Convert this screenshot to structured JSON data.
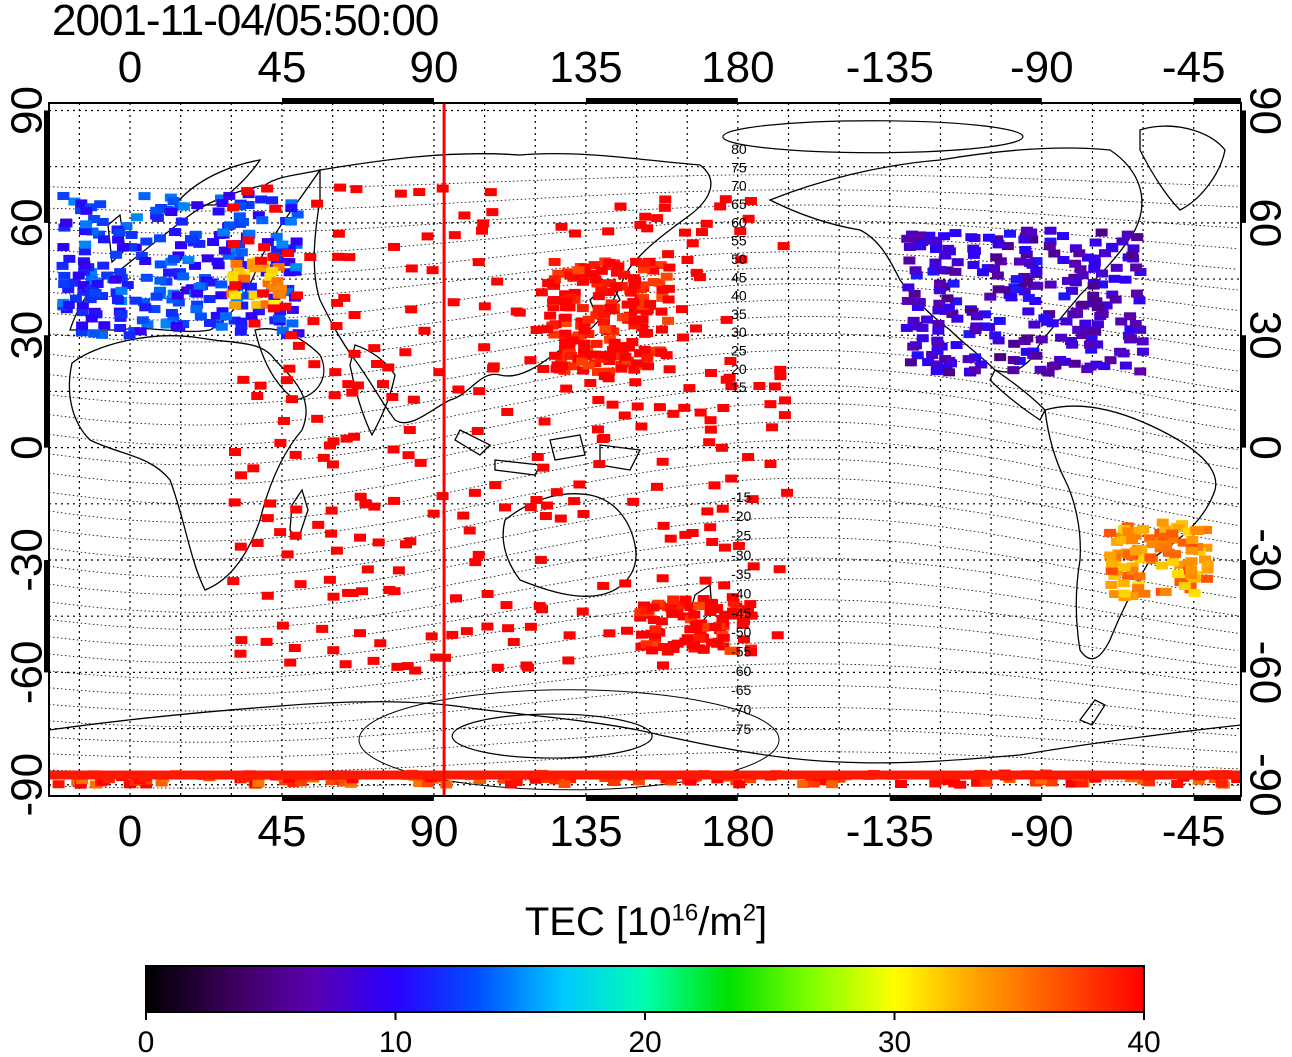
{
  "title": "2001-11-04/05:50:00",
  "map": {
    "lon_ticks_top": [
      "0",
      "45",
      "90",
      "135",
      "180",
      "-135",
      "-90",
      "-45"
    ],
    "lon_ticks_bottom": [
      "0",
      "45",
      "90",
      "135",
      "180",
      "-135",
      "-90",
      "-45"
    ],
    "lat_ticks_left": [
      "90",
      "60",
      "30",
      "0",
      "-30",
      "-60",
      "-90"
    ],
    "lat_ticks_right": [
      "90",
      "60",
      "30",
      "0",
      "-30",
      "-60",
      "-90"
    ],
    "lon_tick_values": [
      0,
      45,
      90,
      135,
      180,
      225,
      270,
      315
    ],
    "lat_tick_values": [
      90,
      60,
      30,
      0,
      -30,
      -60,
      -90
    ],
    "lon_range": [
      -24,
      329
    ],
    "lat_range": [
      -93,
      92
    ],
    "grid": "dotted",
    "terminator_longitude": 93,
    "terminator_color": "#ff0000",
    "contour_labels_north": [
      "80",
      "75",
      "70",
      "65",
      "60",
      "55",
      "50",
      "45",
      "40",
      "35",
      "30",
      "25",
      "20",
      "15"
    ],
    "contour_labels_south": [
      "-15",
      "-20",
      "-25",
      "-30",
      "-35",
      "-40",
      "-45",
      "-50",
      "-55",
      "-60",
      "-65",
      "-70",
      "-75"
    ]
  },
  "colorbar": {
    "label_prefix": "TEC  [10",
    "label_exp": "16",
    "label_mid": "/m",
    "label_exp2": "2",
    "label_suffix": "]",
    "ticks": [
      "0",
      "10",
      "20",
      "30",
      "40"
    ],
    "min": 0,
    "max": 40,
    "colors": [
      "#000000",
      "#3a0058",
      "#5a00b0",
      "#2a00ff",
      "#0050ff",
      "#00c8ff",
      "#00ffb0",
      "#00e000",
      "#80ff00",
      "#ffff00",
      "#ffa000",
      "#ff5000",
      "#ff0000"
    ]
  },
  "chart_data": {
    "type": "heatmap",
    "title": "2001-11-04/05:50:00",
    "value_label": "TEC [10^16/m^2]",
    "value_range": [
      0,
      40
    ],
    "regions": [
      {
        "name": "",
        "lon": [
          -20,
          50
        ],
        "lat": [
          30,
          68
        ],
        "tec": 12
      },
      {
        "name": "",
        "lon": [
          30,
          45
        ],
        "lat": [
          38,
          50
        ],
        "tec": 33
      },
      {
        "name": "",
        "lon": [
          125,
          160
        ],
        "lat": [
          20,
          50
        ],
        "tec": 40
      },
      {
        "name": "",
        "lon": [
          230,
          300
        ],
        "lat": [
          20,
          58
        ],
        "tec": 8
      },
      {
        "name": "",
        "lon": [
          290,
          320
        ],
        "lat": [
          -40,
          -20
        ],
        "tec": 34
      },
      {
        "name": "",
        "lon": [
          150,
          185
        ],
        "lat": [
          -55,
          -40
        ],
        "tec": 40
      },
      {
        "name": "",
        "lon": [
          -24,
          329
        ],
        "lat": [
          -90,
          -87
        ],
        "tec": 38
      }
    ]
  }
}
